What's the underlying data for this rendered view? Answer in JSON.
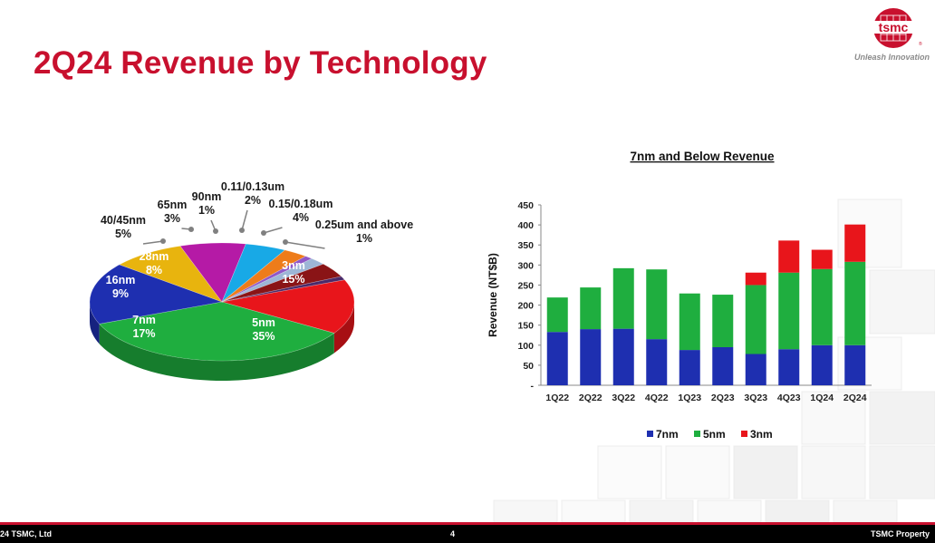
{
  "slide": {
    "title": "2Q24 Revenue by Technology",
    "brand": {
      "logo_text": "tsmc",
      "tagline": "Unleash Innovation"
    },
    "footer": {
      "left": "24 TSMC, Ltd",
      "page": "4",
      "right": "TSMC Property"
    }
  },
  "colors": {
    "brand_red": "#c8102e",
    "3nm": "#e8151b",
    "5nm": "#1fae3f",
    "7nm": "#1e2fb0",
    "16nm": "#e8b40e",
    "28nm": "#b51aa6",
    "40/45nm": "#18a9e6",
    "65nm": "#ee7c1a",
    "90nm": "#9058c8",
    "0.11/0.13um": "#9db6d6",
    "0.15/0.18um": "#8a1416",
    "0.25um and above": "#4a2a6a"
  },
  "chart_data": [
    {
      "type": "pie",
      "title": "",
      "slices": [
        {
          "name": "3nm",
          "value": 15,
          "label": "15%"
        },
        {
          "name": "5nm",
          "value": 35,
          "label": "35%"
        },
        {
          "name": "7nm",
          "value": 17,
          "label": "17%"
        },
        {
          "name": "16nm",
          "value": 9,
          "label": "9%"
        },
        {
          "name": "28nm",
          "value": 8,
          "label": "8%"
        },
        {
          "name": "40/45nm",
          "value": 5,
          "label": "5%"
        },
        {
          "name": "65nm",
          "value": 3,
          "label": "3%"
        },
        {
          "name": "90nm",
          "value": 1,
          "label": "1%"
        },
        {
          "name": "0.11/0.13um",
          "value": 2,
          "label": "2%"
        },
        {
          "name": "0.15/0.18um",
          "value": 4,
          "label": "4%"
        },
        {
          "name": "0.25um and above",
          "value": 1,
          "label": "1%"
        }
      ]
    },
    {
      "type": "bar",
      "stacked": true,
      "title": "7nm and Below Revenue",
      "ylabel": "Revenue (NT$B)",
      "xlabel": "",
      "ylim": [
        0,
        450
      ],
      "yticks": [
        "-",
        "50",
        "100",
        "150",
        "200",
        "250",
        "300",
        "350",
        "400",
        "450"
      ],
      "categories": [
        "1Q22",
        "2Q22",
        "3Q22",
        "4Q22",
        "1Q23",
        "2Q23",
        "3Q23",
        "4Q23",
        "1Q24",
        "2Q24"
      ],
      "series": [
        {
          "name": "7nm",
          "values": [
            133,
            140,
            141,
            115,
            88,
            95,
            78,
            90,
            100,
            100
          ]
        },
        {
          "name": "5nm",
          "values": [
            86,
            104,
            151,
            174,
            141,
            131,
            172,
            191,
            190,
            208
          ]
        },
        {
          "name": "3nm",
          "values": [
            0,
            0,
            0,
            0,
            0,
            0,
            31,
            80,
            48,
            93
          ]
        }
      ],
      "legend_position": "bottom"
    }
  ]
}
